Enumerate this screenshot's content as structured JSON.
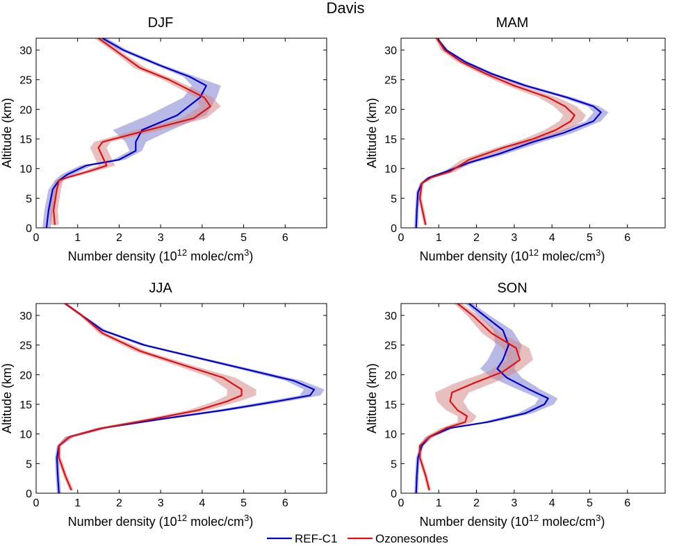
{
  "title": "Davis",
  "colors": {
    "REF-C1": "#0000cc",
    "Ozonesondes": "#dd1111",
    "REF-C1_band": "#7f7fcf",
    "Ozonesondes_band": "#d48a8a"
  },
  "legend": {
    "placement": "bottom-center",
    "entries": [
      "REF-C1",
      "Ozonesondes"
    ]
  },
  "chart_data": [
    {
      "type": "line",
      "title": "DJF",
      "xlabel": "Number density (10",
      "xlabel_sup": "12",
      "xlabel_tail": " molec/cm",
      "xlabel_sup2": "3",
      "xlabel_end": ")",
      "ylabel": "Altitude (km)",
      "xlim": [
        0,
        7
      ],
      "ylim": [
        0,
        32
      ],
      "xticks": [
        0,
        1,
        2,
        3,
        4,
        5,
        6
      ],
      "yticks": [
        0,
        5,
        10,
        15,
        20,
        25,
        30
      ],
      "grid": false,
      "series": [
        {
          "name": "REF-C1",
          "x": [
            0.25,
            0.3,
            0.4,
            0.55,
            0.75,
            1.2,
            2.0,
            2.4,
            2.4,
            2.55,
            3.4,
            3.95,
            4.1,
            3.7,
            2.95,
            2.1,
            1.6
          ],
          "y": [
            0,
            3,
            6.5,
            8,
            9,
            10.5,
            11.5,
            13,
            14.5,
            16.5,
            19,
            22,
            24,
            25.5,
            27.5,
            30,
            32
          ],
          "band": [
            0.1,
            0.1,
            0.1,
            0.1,
            0.15,
            0.15,
            0.15,
            0.15,
            0.25,
            0.7,
            0.7,
            0.4,
            0.35,
            0.15,
            0.1,
            0.1,
            0.1
          ]
        },
        {
          "name": "Ozonesondes",
          "x": [
            0.45,
            0.42,
            0.5,
            0.55,
            0.75,
            1.25,
            1.7,
            1.6,
            1.5,
            1.6,
            2.7,
            3.8,
            4.2,
            4.05,
            3.2,
            2.5,
            2.1,
            1.5
          ],
          "y": [
            0.5,
            3,
            6.5,
            8,
            8.5,
            9.5,
            10.5,
            12,
            13.5,
            14.5,
            16.5,
            18.5,
            20.5,
            22,
            25,
            27,
            29,
            32
          ],
          "band": [
            0.1,
            0.1,
            0.1,
            0.1,
            0.12,
            0.15,
            0.2,
            0.2,
            0.2,
            0.2,
            0.3,
            0.3,
            0.25,
            0.2,
            0.15,
            0.15,
            0.1,
            0.1
          ]
        }
      ]
    },
    {
      "type": "line",
      "title": "MAM",
      "xlabel": "Number density (10",
      "xlabel_sup": "12",
      "xlabel_tail": " molec/cm",
      "xlabel_sup2": "3",
      "xlabel_end": ")",
      "ylabel": "Altitude (km)",
      "xlim": [
        0,
        7
      ],
      "ylim": [
        0,
        32
      ],
      "xticks": [
        0,
        1,
        2,
        3,
        4,
        5,
        6
      ],
      "yticks": [
        0,
        5,
        10,
        15,
        20,
        25,
        30
      ],
      "grid": false,
      "series": [
        {
          "name": "REF-C1",
          "x": [
            0.4,
            0.42,
            0.45,
            0.55,
            0.75,
            1.2,
            1.8,
            2.6,
            3.5,
            4.3,
            5.1,
            5.3,
            5.1,
            4.4,
            3.3,
            2.4,
            1.7,
            1.2,
            0.95
          ],
          "y": [
            0,
            3,
            6,
            7.5,
            8.5,
            9.5,
            11,
            12.5,
            14.5,
            16,
            18,
            19.5,
            20.5,
            22,
            24,
            26,
            28,
            30,
            32
          ],
          "band": [
            0.05,
            0.05,
            0.05,
            0.05,
            0.08,
            0.1,
            0.15,
            0.2,
            0.25,
            0.25,
            0.2,
            0.2,
            0.15,
            0.15,
            0.12,
            0.1,
            0.08,
            0.05,
            0.05
          ]
        },
        {
          "name": "Ozonesondes",
          "x": [
            0.65,
            0.6,
            0.5,
            0.55,
            0.8,
            1.3,
            1.8,
            2.7,
            3.5,
            4.1,
            4.5,
            4.6,
            4.35,
            3.9,
            3.0,
            2.25,
            1.6,
            1.15,
            0.95
          ],
          "y": [
            0.5,
            2,
            5,
            7.5,
            8.5,
            9.5,
            11.5,
            13.5,
            15,
            16.5,
            18,
            19,
            20.5,
            22,
            24,
            26,
            28,
            30,
            32
          ],
          "band": [
            0.05,
            0.05,
            0.05,
            0.05,
            0.1,
            0.15,
            0.2,
            0.2,
            0.25,
            0.3,
            0.3,
            0.3,
            0.3,
            0.25,
            0.2,
            0.15,
            0.12,
            0.1,
            0.05
          ]
        }
      ]
    },
    {
      "type": "line",
      "title": "JJA",
      "xlabel": "Number density (10",
      "xlabel_sup": "12",
      "xlabel_tail": " molec/cm",
      "xlabel_sup2": "3",
      "xlabel_end": ")",
      "ylabel": "Altitude (km)",
      "xlim": [
        0,
        7
      ],
      "ylim": [
        0,
        32
      ],
      "xticks": [
        0,
        1,
        2,
        3,
        4,
        5,
        6
      ],
      "yticks": [
        0,
        5,
        10,
        15,
        20,
        25,
        30
      ],
      "grid": false,
      "series": [
        {
          "name": "REF-C1",
          "x": [
            0.55,
            0.52,
            0.5,
            0.55,
            0.8,
            1.6,
            3.0,
            4.5,
            5.8,
            6.6,
            6.7,
            6.2,
            5.0,
            3.8,
            2.6,
            1.6,
            1.1,
            0.7
          ],
          "y": [
            0,
            3,
            6,
            8,
            9.5,
            11,
            12.5,
            14,
            15.5,
            16.5,
            17.5,
            19,
            21,
            23,
            25,
            27.5,
            30,
            32
          ],
          "band": [
            0.05,
            0.05,
            0.05,
            0.05,
            0.1,
            0.15,
            0.15,
            0.2,
            0.25,
            0.25,
            0.25,
            0.2,
            0.15,
            0.12,
            0.1,
            0.08,
            0.05,
            0.05
          ]
        },
        {
          "name": "Ozonesondes",
          "x": [
            0.85,
            0.7,
            0.55,
            0.55,
            0.8,
            1.6,
            2.8,
            3.9,
            4.6,
            4.95,
            4.95,
            4.5,
            3.6,
            2.5,
            1.6,
            1.1,
            0.7
          ],
          "y": [
            0.5,
            3,
            6,
            8,
            9.5,
            11,
            12.5,
            14,
            15.5,
            16.5,
            17.5,
            19.5,
            21.5,
            24,
            27,
            30,
            32
          ],
          "band": [
            0.05,
            0.05,
            0.05,
            0.05,
            0.1,
            0.15,
            0.2,
            0.25,
            0.3,
            0.35,
            0.35,
            0.3,
            0.2,
            0.15,
            0.1,
            0.05,
            0.05
          ]
        }
      ]
    },
    {
      "type": "line",
      "title": "SON",
      "xlabel": "Number density (10",
      "xlabel_sup": "12",
      "xlabel_tail": " molec/cm",
      "xlabel_sup2": "3",
      "xlabel_end": ")",
      "ylabel": "Altitude (km)",
      "xlim": [
        0,
        7
      ],
      "ylim": [
        0,
        32
      ],
      "xticks": [
        0,
        1,
        2,
        3,
        4,
        5,
        6
      ],
      "yticks": [
        0,
        5,
        10,
        15,
        20,
        25,
        30
      ],
      "grid": false,
      "series": [
        {
          "name": "REF-C1",
          "x": [
            0.4,
            0.42,
            0.45,
            0.55,
            0.75,
            1.3,
            2.3,
            3.3,
            3.8,
            3.9,
            3.4,
            2.8,
            2.55,
            2.7,
            2.85,
            2.7,
            2.2,
            1.8
          ],
          "y": [
            0,
            3,
            6,
            8,
            9.5,
            11,
            12,
            13.5,
            15,
            16,
            17.5,
            19.5,
            21,
            22.5,
            25,
            27.5,
            30,
            32
          ],
          "band": [
            0.05,
            0.05,
            0.05,
            0.05,
            0.1,
            0.1,
            0.15,
            0.2,
            0.25,
            0.25,
            0.3,
            0.4,
            0.45,
            0.4,
            0.35,
            0.25,
            0.15,
            0.1
          ]
        },
        {
          "name": "Ozonesondes",
          "x": [
            0.75,
            0.65,
            0.5,
            0.5,
            0.75,
            1.2,
            1.7,
            1.75,
            1.5,
            1.3,
            1.35,
            1.9,
            2.7,
            3.15,
            3.05,
            2.4,
            1.9,
            1.5
          ],
          "y": [
            0.5,
            3,
            6,
            8,
            9.5,
            11,
            12,
            13,
            14,
            15.5,
            17,
            18.5,
            20.5,
            22.5,
            24.5,
            27,
            30,
            32
          ],
          "band": [
            0.05,
            0.05,
            0.05,
            0.05,
            0.1,
            0.15,
            0.2,
            0.25,
            0.3,
            0.35,
            0.45,
            0.5,
            0.4,
            0.35,
            0.35,
            0.25,
            0.15,
            0.1
          ]
        }
      ]
    }
  ]
}
